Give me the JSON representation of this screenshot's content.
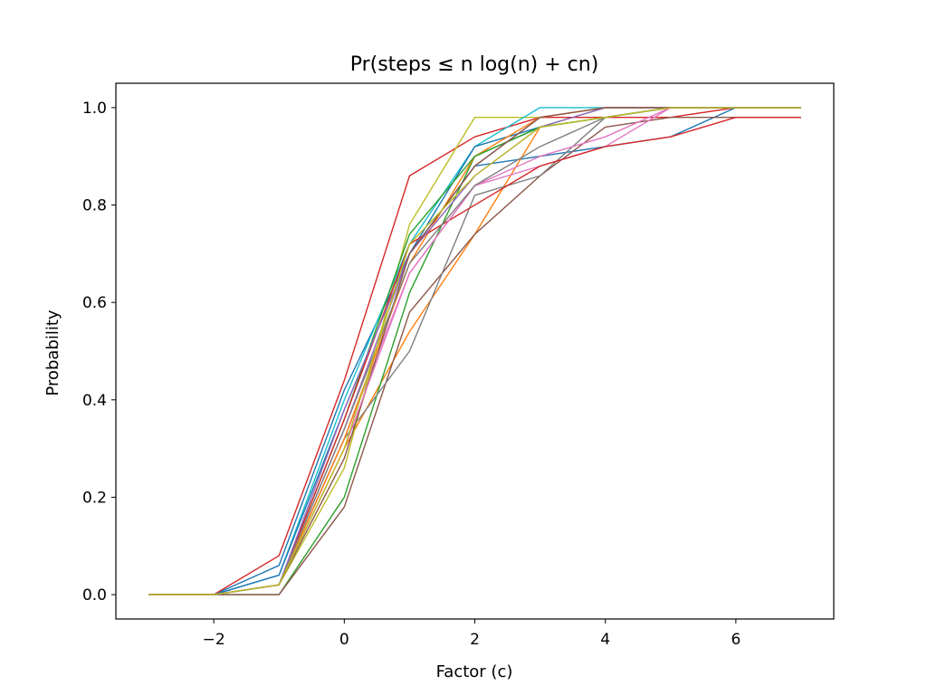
{
  "chart_data": {
    "type": "line",
    "title": "Pr(steps ≤ n log(n) + cn)",
    "xlabel": "Factor (c)",
    "ylabel": "Probability",
    "xlim": [
      -3.5,
      7.5
    ],
    "ylim": [
      -0.05,
      1.05
    ],
    "xticks": [
      -2,
      0,
      2,
      4,
      6
    ],
    "xtick_labels": [
      "−2",
      "0",
      "2",
      "4",
      "6"
    ],
    "yticks": [
      0.0,
      0.2,
      0.4,
      0.6,
      0.8,
      1.0
    ],
    "ytick_labels": [
      "0.0",
      "0.2",
      "0.4",
      "0.6",
      "0.8",
      "1.0"
    ],
    "grid": false,
    "legend": "none",
    "x": [
      -3,
      -2,
      -1,
      0,
      1,
      2,
      3,
      4,
      5,
      6,
      7
    ],
    "series": [
      {
        "color": "#1f77b4",
        "values": [
          0,
          0,
          0.06,
          0.42,
          0.7,
          0.88,
          0.9,
          0.92,
          0.94,
          1.0,
          1.0
        ]
      },
      {
        "color": "#ff7f0e",
        "values": [
          0,
          0,
          0.02,
          0.3,
          0.54,
          0.74,
          0.96,
          0.98,
          1.0,
          1.0,
          1.0
        ]
      },
      {
        "color": "#2ca02c",
        "values": [
          0,
          0,
          0.0,
          0.2,
          0.62,
          0.9,
          0.96,
          1.0,
          1.0,
          1.0,
          1.0
        ]
      },
      {
        "color": "#d62728",
        "values": [
          0,
          0,
          0.08,
          0.44,
          0.86,
          0.94,
          0.98,
          0.98,
          0.98,
          1.0,
          1.0
        ]
      },
      {
        "color": "#9467bd",
        "values": [
          0,
          0,
          0.02,
          0.34,
          0.7,
          0.88,
          0.98,
          1.0,
          1.0,
          1.0,
          1.0
        ]
      },
      {
        "color": "#8c564b",
        "values": [
          0,
          0,
          0.0,
          0.18,
          0.58,
          0.74,
          0.86,
          0.96,
          0.98,
          0.98,
          0.98
        ]
      },
      {
        "color": "#e377c2",
        "values": [
          0,
          0,
          0.02,
          0.32,
          0.66,
          0.84,
          0.88,
          0.92,
          1.0,
          1.0,
          1.0
        ]
      },
      {
        "color": "#7f7f7f",
        "values": [
          0,
          0,
          0.02,
          0.32,
          0.5,
          0.82,
          0.86,
          0.98,
          1.0,
          1.0,
          1.0
        ]
      },
      {
        "color": "#bcbd22",
        "values": [
          0,
          0,
          0.02,
          0.26,
          0.76,
          0.98,
          0.98,
          1.0,
          1.0,
          1.0,
          1.0
        ]
      },
      {
        "color": "#17becf",
        "values": [
          0,
          0,
          0.04,
          0.4,
          0.72,
          0.92,
          1.0,
          1.0,
          1.0,
          1.0,
          1.0
        ]
      },
      {
        "color": "#1f77b4",
        "values": [
          0,
          0,
          0.04,
          0.38,
          0.7,
          0.92,
          0.96,
          0.98,
          1.0,
          1.0,
          1.0
        ]
      },
      {
        "color": "#ff7f0e",
        "values": [
          0,
          0,
          0.02,
          0.32,
          0.68,
          0.9,
          0.98,
          1.0,
          1.0,
          1.0,
          1.0
        ]
      },
      {
        "color": "#2ca02c",
        "values": [
          0,
          0,
          0.02,
          0.36,
          0.74,
          0.9,
          0.96,
          0.98,
          1.0,
          1.0,
          1.0
        ]
      },
      {
        "color": "#d62728",
        "values": [
          0,
          0,
          0.02,
          0.36,
          0.72,
          0.8,
          0.88,
          0.92,
          0.94,
          0.98,
          0.98
        ]
      },
      {
        "color": "#9467bd",
        "values": [
          0,
          0,
          0.02,
          0.38,
          0.7,
          0.86,
          0.96,
          1.0,
          1.0,
          1.0,
          1.0
        ]
      },
      {
        "color": "#8c564b",
        "values": [
          0,
          0,
          0.02,
          0.28,
          0.7,
          0.88,
          0.98,
          1.0,
          1.0,
          1.0,
          1.0
        ]
      },
      {
        "color": "#e377c2",
        "values": [
          0,
          0,
          0.02,
          0.3,
          0.66,
          0.84,
          0.9,
          0.94,
          1.0,
          1.0,
          1.0
        ]
      },
      {
        "color": "#7f7f7f",
        "values": [
          0,
          0,
          0.02,
          0.34,
          0.68,
          0.84,
          0.92,
          0.98,
          1.0,
          1.0,
          1.0
        ]
      },
      {
        "color": "#bcbd22",
        "values": [
          0,
          0,
          0.02,
          0.3,
          0.72,
          0.86,
          0.96,
          0.98,
          1.0,
          1.0,
          1.0
        ]
      }
    ]
  }
}
